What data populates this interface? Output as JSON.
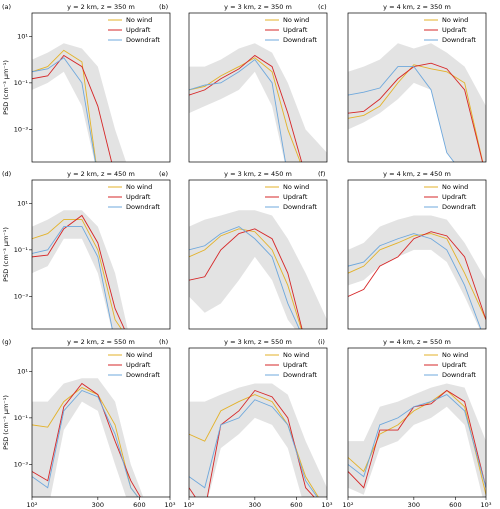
{
  "chart_data": [
    {
      "type": "line",
      "panel_label": "(a)",
      "title": "y = 2 km, z = 350 m",
      "ylabel": "PSD (cm⁻³ µm⁻¹)",
      "xscale": "log",
      "yscale": "log",
      "xlim": [
        100,
        1000
      ],
      "ylim": [
        4e-05,
        100
      ],
      "legend": "upper right",
      "yticks": [
        {
          "value": 10,
          "label": "10¹"
        },
        {
          "value": 0.1,
          "label": "10⁻¹"
        },
        {
          "value": 0.001,
          "label": "10⁻³"
        }
      ],
      "x": [
        100,
        130,
        170,
        230,
        300,
        400,
        520,
        700,
        1000
      ],
      "shade": {
        "color": "#e3e3e3",
        "upper": [
          1,
          2,
          5,
          3,
          0.5,
          0.001,
          1e-05,
          1e-05,
          1e-05
        ],
        "lower": [
          0.05,
          0.1,
          0.3,
          0.01,
          1e-05,
          1e-05,
          1e-05,
          1e-05,
          1e-05
        ]
      },
      "series": [
        {
          "name": "No wind",
          "color": "#e3b22a",
          "values": [
            0.3,
            0.5,
            2.5,
            0.8,
            1e-05,
            null,
            null,
            null,
            null
          ]
        },
        {
          "name": "Updraft",
          "color": "#d62728",
          "values": [
            0.15,
            0.2,
            1.5,
            0.5,
            0.01,
            1e-05,
            null,
            null,
            null
          ]
        },
        {
          "name": "Downdraft",
          "color": "#6fa8dc",
          "values": [
            0.3,
            0.4,
            1.2,
            0.1,
            1e-05,
            null,
            null,
            null,
            null
          ]
        }
      ]
    },
    {
      "type": "line",
      "panel_label": "(b)",
      "title": "y = 3 km, z = 350 m",
      "xscale": "log",
      "yscale": "log",
      "xlim": [
        100,
        1000
      ],
      "ylim": [
        4e-05,
        100
      ],
      "legend": "upper right",
      "x": [
        100,
        130,
        170,
        230,
        300,
        400,
        520,
        700,
        1000
      ],
      "shade": {
        "color": "#e3e3e3",
        "upper": [
          0.5,
          0.5,
          1,
          3,
          5,
          2,
          0.1,
          0.001,
          0.0001
        ],
        "lower": [
          0.005,
          0.01,
          0.02,
          0.05,
          0.3,
          0.01,
          1e-05,
          1e-05,
          1e-05
        ]
      },
      "series": [
        {
          "name": "No wind",
          "color": "#e3b22a",
          "values": [
            0.05,
            0.07,
            0.2,
            0.5,
            1.2,
            0.3,
            0.001,
            1e-05,
            null
          ]
        },
        {
          "name": "Updraft",
          "color": "#d62728",
          "values": [
            0.03,
            0.05,
            0.15,
            0.4,
            1.5,
            0.5,
            0.005,
            1e-05,
            null
          ]
        },
        {
          "name": "Downdraft",
          "color": "#6fa8dc",
          "values": [
            0.05,
            0.08,
            0.1,
            0.3,
            1,
            0.1,
            1e-05,
            null,
            null
          ]
        }
      ]
    },
    {
      "type": "line",
      "panel_label": "(c)",
      "title": "y = 4 km, z = 350 m",
      "xscale": "log",
      "yscale": "log",
      "xlim": [
        100,
        1000
      ],
      "ylim": [
        4e-05,
        100
      ],
      "legend": "upper right",
      "x": [
        100,
        130,
        170,
        230,
        300,
        400,
        520,
        700,
        1000
      ],
      "shade": {
        "color": "#e3e3e3",
        "upper": [
          0.3,
          0.5,
          1,
          5,
          3,
          5,
          2,
          0.5,
          0.01
        ],
        "lower": [
          0.001,
          0.002,
          0.005,
          0.02,
          0.1,
          0.05,
          0.0001,
          1e-05,
          1e-05
        ]
      },
      "series": [
        {
          "name": "No wind",
          "color": "#e3b22a",
          "values": [
            0.003,
            0.004,
            0.01,
            0.1,
            0.6,
            0.4,
            0.3,
            0.1,
            1e-05
          ]
        },
        {
          "name": "Updraft",
          "color": "#d62728",
          "values": [
            0.005,
            0.006,
            0.02,
            0.15,
            0.5,
            0.7,
            0.4,
            0.05,
            1e-05
          ]
        },
        {
          "name": "Downdraft",
          "color": "#6fa8dc",
          "values": [
            0.03,
            0.04,
            0.06,
            0.5,
            0.5,
            0.05,
            0.0001,
            1e-05,
            null
          ]
        }
      ]
    },
    {
      "type": "line",
      "panel_label": "(d)",
      "title": "y = 2 km, z = 450 m",
      "ylabel": "PSD (cm⁻³ µm⁻¹)",
      "xscale": "log",
      "yscale": "log",
      "xlim": [
        100,
        1000
      ],
      "ylim": [
        4e-05,
        100
      ],
      "legend": "upper right",
      "yticks": [
        {
          "value": 10,
          "label": "10¹"
        },
        {
          "value": 0.1,
          "label": "10⁻¹"
        },
        {
          "value": 0.001,
          "label": "10⁻³"
        }
      ],
      "x": [
        100,
        130,
        170,
        230,
        300,
        400,
        520,
        700,
        1000
      ],
      "shade": {
        "color": "#e3e3e3",
        "upper": [
          1,
          2,
          5,
          5,
          1,
          0.01,
          1e-05,
          1e-05,
          1e-05
        ],
        "lower": [
          0.01,
          0.02,
          0.3,
          0.3,
          0.01,
          1e-05,
          1e-05,
          1e-05,
          1e-05
        ]
      },
      "series": [
        {
          "name": "No wind",
          "color": "#e3b22a",
          "values": [
            0.3,
            0.5,
            2,
            2,
            0.1,
            0.0001,
            1e-05,
            null,
            null
          ]
        },
        {
          "name": "Updraft",
          "color": "#d62728",
          "values": [
            0.05,
            0.06,
            0.8,
            3,
            0.2,
            0.0003,
            1e-05,
            null,
            null
          ]
        },
        {
          "name": "Downdraft",
          "color": "#6fa8dc",
          "values": [
            0.07,
            0.1,
            1,
            1,
            0.05,
            1e-05,
            null,
            null,
            null
          ]
        }
      ]
    },
    {
      "type": "line",
      "panel_label": "(e)",
      "title": "y = 3 km, z = 450 m",
      "xscale": "log",
      "yscale": "log",
      "xlim": [
        100,
        1000
      ],
      "ylim": [
        4e-05,
        100
      ],
      "legend": "upper right",
      "x": [
        100,
        130,
        170,
        230,
        300,
        400,
        520,
        700,
        1000
      ],
      "shade": {
        "color": "#e3e3e3",
        "upper": [
          1,
          2,
          3,
          5,
          5,
          3,
          0.3,
          0.01,
          0.0001
        ],
        "lower": [
          0.001,
          0.0002,
          0.0005,
          0.005,
          0.05,
          0.005,
          0.0001,
          1e-05,
          1e-05
        ]
      },
      "series": [
        {
          "name": "No wind",
          "color": "#e3b22a",
          "values": [
            0.05,
            0.1,
            0.4,
            0.8,
            0.6,
            0.1,
            0.003,
            1e-05,
            null
          ]
        },
        {
          "name": "Updraft",
          "color": "#d62728",
          "values": [
            0.005,
            0.007,
            0.1,
            0.5,
            0.8,
            0.3,
            0.01,
            1e-05,
            null
          ]
        },
        {
          "name": "Downdraft",
          "color": "#6fa8dc",
          "values": [
            0.1,
            0.15,
            0.5,
            1,
            0.3,
            0.05,
            0.0005,
            1e-05,
            null
          ]
        }
      ]
    },
    {
      "type": "line",
      "panel_label": "(f)",
      "title": "y = 4 km, z = 450 m",
      "xscale": "log",
      "yscale": "log",
      "xlim": [
        100,
        1000
      ],
      "ylim": [
        4e-05,
        100
      ],
      "legend": "upper right",
      "x": [
        100,
        130,
        170,
        230,
        300,
        400,
        520,
        700,
        1000
      ],
      "shade": {
        "color": "#e3e3e3",
        "upper": [
          0.1,
          0.2,
          1,
          2,
          3,
          3,
          2,
          0.2,
          0.005
        ],
        "lower": [
          0.003,
          0.005,
          0.02,
          0.05,
          0.1,
          0.1,
          0.03,
          0.001,
          1e-05
        ]
      },
      "series": [
        {
          "name": "No wind",
          "color": "#e3b22a",
          "values": [
            0.01,
            0.02,
            0.1,
            0.2,
            0.4,
            0.5,
            0.3,
            0.01,
            0.0001
          ]
        },
        {
          "name": "Updraft",
          "color": "#d62728",
          "values": [
            0.001,
            0.002,
            0.02,
            0.05,
            0.3,
            0.6,
            0.4,
            0.05,
            0.0001
          ]
        },
        {
          "name": "Downdraft",
          "color": "#6fa8dc",
          "values": [
            0.02,
            0.03,
            0.15,
            0.3,
            0.5,
            0.3,
            0.1,
            0.003,
            1e-05
          ]
        }
      ]
    },
    {
      "type": "line",
      "panel_label": "(g)",
      "title": "y = 2 km, z = 550 m",
      "ylabel": "PSD (cm⁻³ µm⁻¹)",
      "xscale": "log",
      "yscale": "log",
      "xlim": [
        100,
        1000
      ],
      "ylim": [
        4e-05,
        100
      ],
      "legend": "upper right",
      "yticks": [
        {
          "value": 10,
          "label": "10¹"
        },
        {
          "value": 0.1,
          "label": "10⁻¹"
        },
        {
          "value": 0.001,
          "label": "10⁻³"
        }
      ],
      "xticks": [
        {
          "value": 100,
          "label": "10²"
        },
        300,
        600,
        {
          "value": 1000,
          "label": "10³"
        }
      ],
      "x": [
        100,
        130,
        170,
        230,
        300,
        400,
        520,
        700,
        1000
      ],
      "shade": {
        "color": "#e3e3e3",
        "upper": [
          0.5,
          0.5,
          3,
          5,
          5,
          0.5,
          0.001,
          1e-05,
          1e-05
        ],
        "lower": [
          1e-05,
          1e-05,
          0.03,
          0.5,
          0.2,
          0.001,
          1e-05,
          1e-05,
          1e-05
        ]
      },
      "series": [
        {
          "name": "No wind",
          "color": "#e3b22a",
          "values": [
            0.05,
            0.04,
            0.5,
            2,
            1,
            0.05,
            0.0001,
            1e-05,
            null
          ]
        },
        {
          "name": "Updraft",
          "color": "#d62728",
          "values": [
            0.0005,
            0.0002,
            0.3,
            3,
            1,
            0.01,
            0.0002,
            1e-05,
            null
          ]
        },
        {
          "name": "Downdraft",
          "color": "#6fa8dc",
          "values": [
            0.0003,
            0.0001,
            0.2,
            1.5,
            0.8,
            0.02,
            0.0001,
            1e-05,
            null
          ]
        }
      ]
    },
    {
      "type": "line",
      "panel_label": "(h)",
      "title": "y = 3 km, z = 550 m",
      "xscale": "log",
      "yscale": "log",
      "xlim": [
        100,
        1000
      ],
      "ylim": [
        4e-05,
        100
      ],
      "legend": "upper right",
      "xticks": [
        {
          "value": 100,
          "label": "10²"
        },
        300,
        600,
        {
          "value": 1000,
          "label": "10³"
        }
      ],
      "x": [
        100,
        130,
        170,
        230,
        300,
        400,
        520,
        700,
        1000
      ],
      "shade": {
        "color": "#e3e3e3",
        "upper": [
          0.5,
          0.5,
          1,
          2,
          3,
          3,
          1,
          0.01,
          0.0001
        ],
        "lower": [
          1e-05,
          1e-05,
          0.005,
          0.02,
          0.1,
          0.05,
          0.005,
          1e-05,
          1e-05
        ]
      },
      "series": [
        {
          "name": "No wind",
          "color": "#e3b22a",
          "values": [
            0.02,
            0.01,
            0.2,
            0.5,
            1,
            0.5,
            0.05,
            0.0003,
            1e-05
          ]
        },
        {
          "name": "Updraft",
          "color": "#d62728",
          "values": [
            0.0001,
            1e-05,
            0.05,
            0.2,
            1.5,
            0.8,
            0.1,
            0.0001,
            1e-05
          ]
        },
        {
          "name": "Downdraft",
          "color": "#6fa8dc",
          "values": [
            0.0003,
            0.0001,
            0.05,
            0.1,
            0.6,
            0.3,
            0.05,
            0.0002,
            1e-05
          ]
        }
      ]
    },
    {
      "type": "line",
      "panel_label": "(i)",
      "title": "y = 4 km, z = 550 m",
      "xscale": "log",
      "yscale": "log",
      "xlim": [
        100,
        1000
      ],
      "ylim": [
        4e-05,
        100
      ],
      "legend": "upper right",
      "xticks": [
        {
          "value": 100,
          "label": "10²"
        },
        300,
        600,
        {
          "value": 1000,
          "label": "10³"
        }
      ],
      "x": [
        100,
        130,
        170,
        230,
        300,
        400,
        520,
        700,
        1000
      ],
      "shade": {
        "color": "#e3e3e3",
        "upper": [
          0.01,
          0.01,
          0.3,
          0.5,
          1,
          2,
          3,
          2,
          0.01
        ],
        "lower": [
          0.0001,
          5e-05,
          0.005,
          0.01,
          0.05,
          0.1,
          0.3,
          0.05,
          1e-05
        ]
      },
      "series": [
        {
          "name": "No wind",
          "color": "#e3b22a",
          "values": [
            0.002,
            0.0005,
            0.02,
            0.05,
            0.2,
            0.5,
            1.5,
            0.3,
            5e-05
          ]
        },
        {
          "name": "Updraft",
          "color": "#d62728",
          "values": [
            0.0005,
            0.0001,
            0.03,
            0.03,
            0.3,
            0.4,
            1.5,
            0.5,
            0.0001
          ]
        },
        {
          "name": "Downdraft",
          "color": "#6fa8dc",
          "values": [
            0.001,
            0.0003,
            0.05,
            0.1,
            0.3,
            0.5,
            1,
            0.2,
            0.0001
          ]
        }
      ]
    }
  ]
}
